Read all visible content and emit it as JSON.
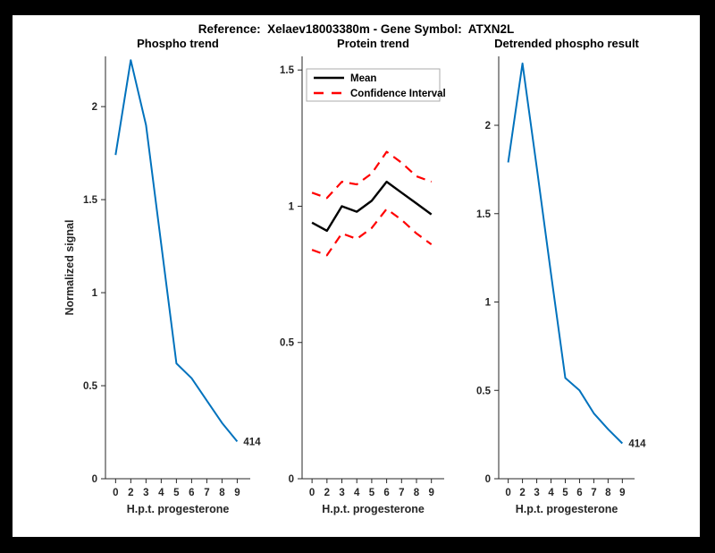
{
  "figure": {
    "title": "Reference:  Xelaev18003380m - Gene Symbol:  ATXN2L",
    "background": "#ffffff",
    "frame_color": "#000000",
    "axis_color": "#262626",
    "accent_blue": "#0072BD",
    "accent_red": "#ff0000"
  },
  "chart_data": [
    {
      "type": "line",
      "name": "phospho-trend",
      "title": "Phospho trend",
      "xlabel": "H.p.t. progesterone",
      "ylabel": "Normalized signal",
      "x_tick_labels": [
        "0",
        "2",
        "3",
        "4",
        "5",
        "6",
        "7",
        "8",
        "9"
      ],
      "y_ticks": [
        0,
        0.5,
        1,
        1.5,
        2
      ],
      "ylim": [
        0,
        2.27
      ],
      "grid": false,
      "series": [
        {
          "name": "phospho signal",
          "color": "#0072BD",
          "style": "solid",
          "width": 2,
          "values": [
            1.74,
            2.25,
            1.9,
            1.26,
            0.62,
            0.54,
            0.42,
            0.3,
            0.2
          ]
        }
      ],
      "annotation": {
        "text": "414"
      }
    },
    {
      "type": "line",
      "name": "protein-trend",
      "title": "Protein trend",
      "xlabel": "H.p.t. progesterone",
      "ylabel": "",
      "x_tick_labels": [
        "0",
        "2",
        "3",
        "4",
        "5",
        "6",
        "7",
        "8",
        "9"
      ],
      "y_ticks": [
        0,
        0.5,
        1,
        1.5
      ],
      "ylim": [
        0,
        1.55
      ],
      "grid": false,
      "series": [
        {
          "name": "Mean",
          "color": "#000000",
          "style": "solid",
          "width": 2.4,
          "values": [
            0.94,
            0.91,
            1.0,
            0.98,
            1.02,
            1.09,
            1.05,
            1.01,
            0.97
          ]
        },
        {
          "name": "Confidence Interval upper",
          "color": "#ff0000",
          "style": "dashed",
          "width": 2.2,
          "values": [
            1.05,
            1.03,
            1.09,
            1.08,
            1.12,
            1.2,
            1.16,
            1.11,
            1.09
          ]
        },
        {
          "name": "Confidence Interval lower",
          "color": "#ff0000",
          "style": "dashed",
          "width": 2.2,
          "values": [
            0.84,
            0.82,
            0.9,
            0.88,
            0.92,
            0.99,
            0.95,
            0.9,
            0.86
          ]
        }
      ],
      "legend": {
        "position": "north",
        "entries": [
          {
            "label": "Mean",
            "color": "#000000",
            "style": "solid"
          },
          {
            "label": "Confidence Interval",
            "color": "#ff0000",
            "style": "dashed"
          }
        ]
      }
    },
    {
      "type": "line",
      "name": "detrended-phospho-result",
      "title": "Detrended phospho result",
      "xlabel": "H.p.t. progesterone",
      "ylabel": "",
      "x_tick_labels": [
        "0",
        "2",
        "3",
        "4",
        "5",
        "6",
        "7",
        "8",
        "9"
      ],
      "y_ticks": [
        0,
        0.5,
        1,
        1.5,
        2
      ],
      "ylim": [
        0,
        2.39
      ],
      "grid": false,
      "series": [
        {
          "name": "detrended phospho signal",
          "color": "#0072BD",
          "style": "solid",
          "width": 2,
          "values": [
            1.79,
            2.35,
            1.76,
            1.16,
            0.57,
            0.5,
            0.37,
            0.28,
            0.2
          ]
        }
      ],
      "annotation": {
        "text": "414"
      }
    }
  ]
}
